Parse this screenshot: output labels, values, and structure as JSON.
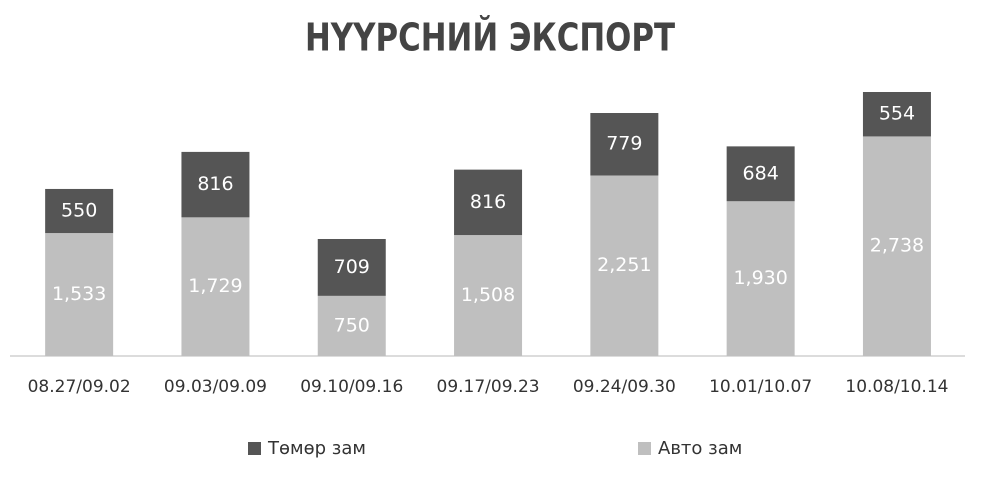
{
  "chart_data": {
    "type": "stacked_bar",
    "title": "НҮҮРСНИЙ ЭКСПОРТ",
    "categories": [
      "08.27/09.02",
      "09.03/09.09",
      "09.10/09.16",
      "09.17/09.23",
      "09.24/09.30",
      "10.01/10.07",
      "10.08/10.14"
    ],
    "series": [
      {
        "name": "Төмөр зам",
        "color": "#555555",
        "values": [
          550,
          816,
          709,
          816,
          779,
          684,
          554
        ]
      },
      {
        "name": "Авто зам",
        "color": "#bfbfbf",
        "values": [
          1533,
          1729,
          750,
          1508,
          2251,
          1930,
          2738
        ],
        "value_labels": [
          "1,533",
          "1,729",
          "750",
          "1,508",
          "2,251",
          "1,930",
          "2,738"
        ]
      }
    ],
    "legend": "bottom"
  }
}
